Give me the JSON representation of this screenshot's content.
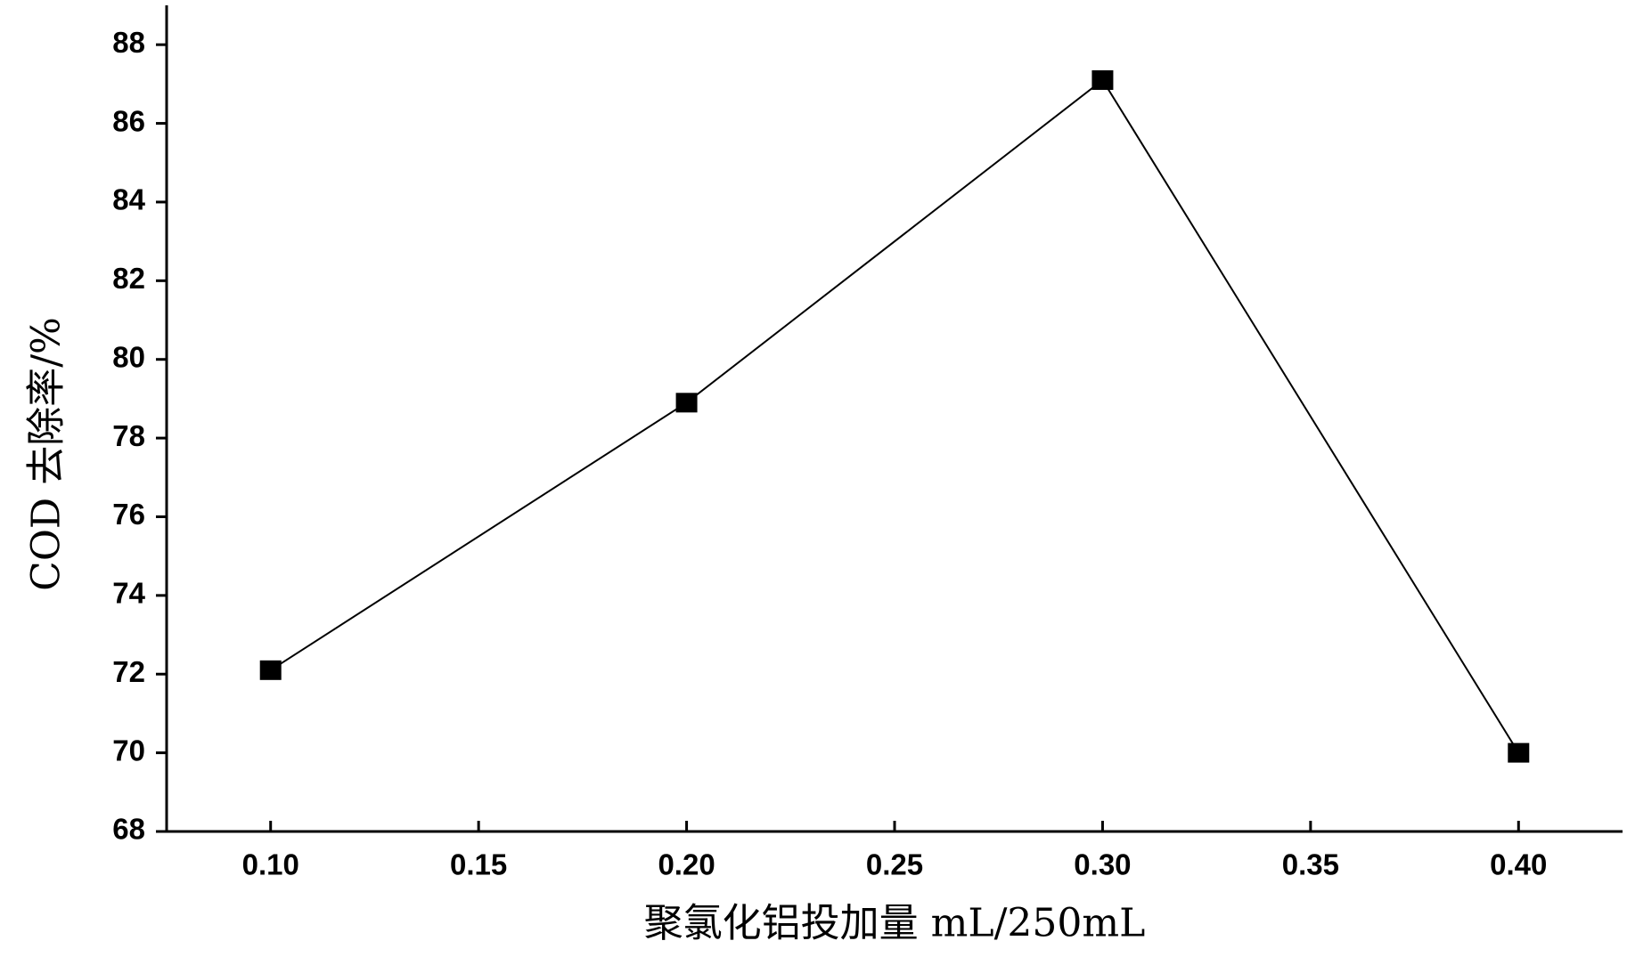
{
  "chart_data": {
    "type": "line",
    "x_label": "聚氯化铝投加量 mL/250mL",
    "y_label": "COD 去除率/%",
    "x": [
      0.1,
      0.2,
      0.3,
      0.4
    ],
    "series": [
      {
        "color": "#000000",
        "values": [
          72.1,
          78.9,
          87.1,
          70.0
        ]
      }
    ],
    "xlim": [
      0.075,
      0.425
    ],
    "xticks": [
      {
        "value": 0.1,
        "label": "0.10"
      },
      {
        "value": 0.15,
        "label": "0.15"
      },
      {
        "value": 0.2,
        "label": "0.20"
      },
      {
        "value": 0.25,
        "label": "0.25"
      },
      {
        "value": 0.3,
        "label": "0.30"
      },
      {
        "value": 0.35,
        "label": "0.35"
      },
      {
        "value": 0.4,
        "label": "0.40"
      }
    ],
    "ylim": [
      68,
      89
    ],
    "yticks": [
      68,
      70,
      72,
      74,
      76,
      78,
      80,
      82,
      84,
      86,
      88
    ]
  }
}
